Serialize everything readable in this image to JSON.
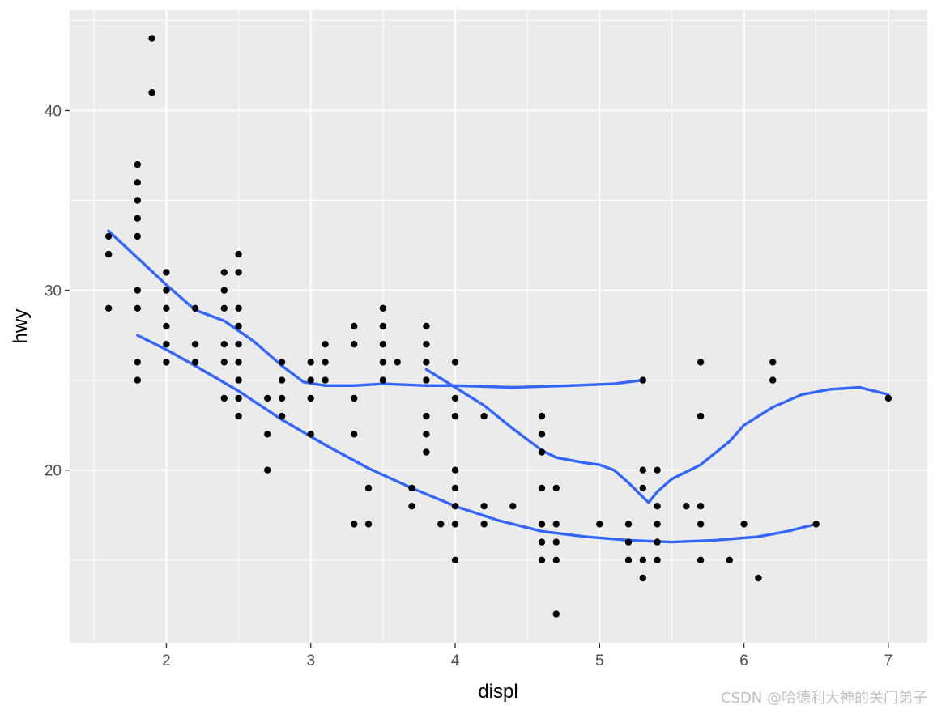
{
  "chart_data": {
    "type": "scatter",
    "xlabel": "displ",
    "ylabel": "hwy",
    "xlim": [
      1.33,
      7.27
    ],
    "ylim": [
      10.4,
      45.6
    ],
    "x_ticks": [
      2,
      3,
      4,
      5,
      6,
      7
    ],
    "y_ticks": [
      20,
      30,
      40
    ],
    "x_tick_labels": [
      "2",
      "3",
      "4",
      "5",
      "6",
      "7"
    ],
    "y_tick_labels": [
      "20",
      "30",
      "40"
    ],
    "grid": true,
    "legend": "none",
    "colors": {
      "panel_bg": "#ebebeb",
      "grid": "#ffffff",
      "points": "#000000",
      "smooth": "#3366ff"
    },
    "points": [
      [
        1.6,
        33
      ],
      [
        1.6,
        32
      ],
      [
        1.6,
        29
      ],
      [
        1.8,
        37
      ],
      [
        1.8,
        36
      ],
      [
        1.8,
        35
      ],
      [
        1.8,
        34
      ],
      [
        1.8,
        33
      ],
      [
        1.8,
        30
      ],
      [
        1.8,
        29
      ],
      [
        1.8,
        26
      ],
      [
        1.8,
        25
      ],
      [
        1.9,
        44
      ],
      [
        1.9,
        41
      ],
      [
        2.0,
        31
      ],
      [
        2.0,
        30
      ],
      [
        2.0,
        29
      ],
      [
        2.0,
        28
      ],
      [
        2.0,
        27
      ],
      [
        2.0,
        26
      ],
      [
        2.2,
        29
      ],
      [
        2.2,
        27
      ],
      [
        2.2,
        26
      ],
      [
        2.4,
        31
      ],
      [
        2.4,
        30
      ],
      [
        2.4,
        29
      ],
      [
        2.4,
        27
      ],
      [
        2.4,
        26
      ],
      [
        2.4,
        24
      ],
      [
        2.5,
        32
      ],
      [
        2.5,
        31
      ],
      [
        2.5,
        29
      ],
      [
        2.5,
        28
      ],
      [
        2.5,
        27
      ],
      [
        2.5,
        26
      ],
      [
        2.5,
        25
      ],
      [
        2.5,
        24
      ],
      [
        2.5,
        23
      ],
      [
        2.7,
        24
      ],
      [
        2.7,
        22
      ],
      [
        2.7,
        20
      ],
      [
        2.8,
        26
      ],
      [
        2.8,
        25
      ],
      [
        2.8,
        24
      ],
      [
        2.8,
        23
      ],
      [
        3.0,
        26
      ],
      [
        3.0,
        25
      ],
      [
        3.0,
        24
      ],
      [
        3.0,
        22
      ],
      [
        3.1,
        27
      ],
      [
        3.1,
        26
      ],
      [
        3.1,
        25
      ],
      [
        3.3,
        28
      ],
      [
        3.3,
        27
      ],
      [
        3.3,
        24
      ],
      [
        3.3,
        22
      ],
      [
        3.3,
        17
      ],
      [
        3.4,
        19
      ],
      [
        3.4,
        17
      ],
      [
        3.5,
        29
      ],
      [
        3.5,
        28
      ],
      [
        3.5,
        27
      ],
      [
        3.5,
        26
      ],
      [
        3.5,
        25
      ],
      [
        3.6,
        26
      ],
      [
        3.7,
        19
      ],
      [
        3.7,
        18
      ],
      [
        3.8,
        28
      ],
      [
        3.8,
        27
      ],
      [
        3.8,
        26
      ],
      [
        3.8,
        25
      ],
      [
        3.8,
        23
      ],
      [
        3.8,
        22
      ],
      [
        3.8,
        21
      ],
      [
        3.9,
        17
      ],
      [
        4.0,
        26
      ],
      [
        4.0,
        24
      ],
      [
        4.0,
        23
      ],
      [
        4.0,
        20
      ],
      [
        4.0,
        19
      ],
      [
        4.0,
        18
      ],
      [
        4.0,
        17
      ],
      [
        4.0,
        15
      ],
      [
        4.2,
        23
      ],
      [
        4.2,
        18
      ],
      [
        4.2,
        17
      ],
      [
        4.4,
        18
      ],
      [
        4.6,
        23
      ],
      [
        4.6,
        22
      ],
      [
        4.6,
        21
      ],
      [
        4.6,
        19
      ],
      [
        4.6,
        17
      ],
      [
        4.6,
        16
      ],
      [
        4.6,
        15
      ],
      [
        4.7,
        19
      ],
      [
        4.7,
        17
      ],
      [
        4.7,
        16
      ],
      [
        4.7,
        15
      ],
      [
        4.7,
        12
      ],
      [
        5.0,
        17
      ],
      [
        5.2,
        17
      ],
      [
        5.2,
        16
      ],
      [
        5.2,
        15
      ],
      [
        5.3,
        25
      ],
      [
        5.3,
        20
      ],
      [
        5.3,
        19
      ],
      [
        5.3,
        15
      ],
      [
        5.3,
        14
      ],
      [
        5.4,
        20
      ],
      [
        5.4,
        18
      ],
      [
        5.4,
        17
      ],
      [
        5.4,
        16
      ],
      [
        5.4,
        15
      ],
      [
        5.6,
        18
      ],
      [
        5.7,
        26
      ],
      [
        5.7,
        23
      ],
      [
        5.7,
        18
      ],
      [
        5.7,
        17
      ],
      [
        5.7,
        15
      ],
      [
        5.9,
        15
      ],
      [
        6.0,
        17
      ],
      [
        6.1,
        14
      ],
      [
        6.2,
        26
      ],
      [
        6.2,
        25
      ],
      [
        6.5,
        17
      ],
      [
        7.0,
        24
      ]
    ],
    "smooth_lines": [
      {
        "values": [
          [
            1.6,
            33.3
          ],
          [
            1.8,
            31.8
          ],
          [
            2.0,
            30.3
          ],
          [
            2.2,
            28.9
          ],
          [
            2.4,
            28.3
          ],
          [
            2.6,
            27.2
          ],
          [
            2.8,
            25.8
          ],
          [
            2.95,
            24.9
          ],
          [
            3.1,
            24.7
          ],
          [
            3.3,
            24.7
          ],
          [
            3.5,
            24.8
          ],
          [
            3.8,
            24.7
          ],
          [
            4.0,
            24.7
          ],
          [
            4.4,
            24.6
          ],
          [
            4.8,
            24.7
          ],
          [
            5.1,
            24.8
          ],
          [
            5.3,
            25.0
          ]
        ]
      },
      {
        "values": [
          [
            1.8,
            27.5
          ],
          [
            2.0,
            26.7
          ],
          [
            2.2,
            25.8
          ],
          [
            2.5,
            24.4
          ],
          [
            2.8,
            22.8
          ],
          [
            3.1,
            21.4
          ],
          [
            3.4,
            20.1
          ],
          [
            3.7,
            19.0
          ],
          [
            4.0,
            18.0
          ],
          [
            4.3,
            17.2
          ],
          [
            4.6,
            16.6
          ],
          [
            4.9,
            16.3
          ],
          [
            5.2,
            16.1
          ],
          [
            5.5,
            16.0
          ],
          [
            5.8,
            16.1
          ],
          [
            6.1,
            16.3
          ],
          [
            6.3,
            16.6
          ],
          [
            6.5,
            17.0
          ]
        ]
      },
      {
        "values": [
          [
            3.8,
            25.6
          ],
          [
            4.0,
            24.6
          ],
          [
            4.2,
            23.6
          ],
          [
            4.4,
            22.3
          ],
          [
            4.6,
            21.1
          ],
          [
            4.7,
            20.7
          ],
          [
            4.9,
            20.4
          ],
          [
            5.0,
            20.3
          ],
          [
            5.1,
            20.0
          ],
          [
            5.2,
            19.3
          ],
          [
            5.3,
            18.5
          ],
          [
            5.34,
            18.2
          ],
          [
            5.4,
            18.8
          ],
          [
            5.5,
            19.5
          ],
          [
            5.7,
            20.3
          ],
          [
            5.9,
            21.6
          ],
          [
            6.0,
            22.5
          ],
          [
            6.2,
            23.5
          ],
          [
            6.4,
            24.2
          ],
          [
            6.6,
            24.5
          ],
          [
            6.8,
            24.6
          ],
          [
            7.0,
            24.2
          ]
        ]
      }
    ]
  },
  "watermark": "CSDN @哈德利大神的关门弟子"
}
